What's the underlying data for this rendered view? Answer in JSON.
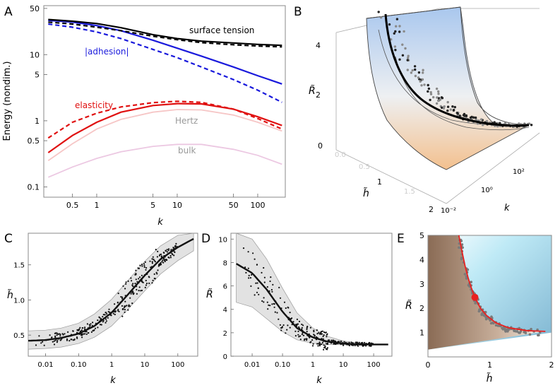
{
  "colors": {
    "surface_tension": "#000000",
    "adhesion": "#1a1adc",
    "elasticity": "#e01010",
    "hertz": "#f6c6c6",
    "bulk": "#ecc8e2",
    "band_fill": "#e2e2e2",
    "band_stroke": "#999999",
    "scatter": "#111111",
    "fit_line": "#111111",
    "curve_E": "#e82020"
  },
  "chart_data": [
    {
      "panel": "A",
      "type": "line",
      "xscale": "log",
      "yscale": "log",
      "xlim": [
        0.22,
        220
      ],
      "ylim": [
        0.07,
        55
      ],
      "xlabel": "k",
      "ylabel": "Energy (nondim.)",
      "xticks": [
        0.5,
        1,
        5,
        10,
        50,
        100
      ],
      "xtick_labels": [
        "0.5",
        "1",
        "5",
        "10",
        "50",
        "100"
      ],
      "yticks": [
        0.1,
        0.5,
        1,
        5,
        10,
        50
      ],
      "ytick_labels": [
        "0.1",
        "0.5",
        "1",
        "5",
        "10",
        "50"
      ],
      "x": [
        0.25,
        0.5,
        1,
        2,
        5,
        10,
        20,
        50,
        100,
        200
      ],
      "series": [
        {
          "name": "surface tension",
          "color_key": "surface_tension",
          "dash": false,
          "values": [
            34,
            32,
            29.5,
            25.5,
            20,
            17.5,
            16,
            15,
            14.3,
            13.8
          ]
        },
        {
          "name": "",
          "color_key": "surface_tension",
          "dash": true,
          "values": [
            31,
            29,
            26,
            23,
            19,
            16.8,
            15.2,
            14.1,
            13.5,
            13.1
          ]
        },
        {
          "name": "|adhesion|",
          "color_key": "adhesion",
          "dash": false,
          "values": [
            33,
            31,
            27.5,
            23,
            16.5,
            12.5,
            9.5,
            6.5,
            4.8,
            3.6
          ]
        },
        {
          "name": "",
          "color_key": "adhesion",
          "dash": true,
          "values": [
            29,
            26,
            22,
            17.5,
            12,
            9,
            6.5,
            4.2,
            2.9,
            1.9
          ]
        },
        {
          "name": "elasticity",
          "color_key": "elasticity",
          "dash": false,
          "values": [
            0.33,
            0.6,
            0.95,
            1.35,
            1.7,
            1.82,
            1.8,
            1.5,
            1.15,
            0.85
          ]
        },
        {
          "name": "",
          "color_key": "elasticity",
          "dash": true,
          "values": [
            0.55,
            0.95,
            1.3,
            1.62,
            1.88,
            1.97,
            1.9,
            1.5,
            1.08,
            0.75
          ]
        },
        {
          "name": "Hertz",
          "color_key": "hertz",
          "dash": false,
          "values": [
            0.25,
            0.45,
            0.75,
            1.05,
            1.35,
            1.48,
            1.46,
            1.22,
            0.95,
            0.7
          ]
        },
        {
          "name": "bulk",
          "color_key": "bulk",
          "dash": false,
          "values": [
            0.14,
            0.2,
            0.27,
            0.34,
            0.41,
            0.44,
            0.44,
            0.37,
            0.3,
            0.22
          ]
        }
      ]
    },
    {
      "panel": "B",
      "type": "scatter",
      "projection": "3d",
      "axes": {
        "x": "h̃",
        "y": "k",
        "z": "R̃"
      },
      "xticks": [
        "0.0",
        "0.5",
        "1",
        "1.5",
        "2"
      ],
      "yticks": [
        "10⁻²",
        "10⁰",
        "10²"
      ],
      "zticks": [
        "0",
        "2",
        "4"
      ]
    },
    {
      "panel": "C",
      "type": "scatter",
      "xscale": "log",
      "xlim": [
        0.003,
        400
      ],
      "ylim": [
        0.2,
        1.95
      ],
      "xlabel": "k",
      "ylabel": "h̃",
      "xticks": [
        0.01,
        0.1,
        1,
        10,
        100
      ],
      "xtick_labels": [
        "0.01",
        "0.10",
        "1",
        "10",
        "100"
      ],
      "yticks": [
        0.5,
        1.0,
        1.5
      ],
      "ytick_labels": [
        "0.5",
        "1.0",
        "1.5"
      ],
      "fit": {
        "x": [
          0.003,
          0.01,
          0.03,
          0.1,
          0.3,
          1,
          3,
          10,
          30,
          100,
          300
        ],
        "y": [
          0.42,
          0.43,
          0.46,
          0.52,
          0.63,
          0.82,
          1.07,
          1.35,
          1.58,
          1.75,
          1.87
        ]
      },
      "band": {
        "x": [
          0.003,
          0.01,
          0.03,
          0.1,
          0.3,
          1,
          3,
          10,
          30,
          100,
          300
        ],
        "lower": [
          0.3,
          0.31,
          0.33,
          0.38,
          0.47,
          0.63,
          0.86,
          1.13,
          1.37,
          1.56,
          1.7
        ],
        "upper": [
          0.56,
          0.57,
          0.6,
          0.67,
          0.8,
          1.01,
          1.27,
          1.55,
          1.77,
          1.92,
          1.98
        ]
      }
    },
    {
      "panel": "D",
      "type": "scatter",
      "xscale": "log",
      "xlim": [
        0.002,
        400
      ],
      "ylim": [
        0,
        10.5
      ],
      "xlabel": "k",
      "ylabel": "R̃",
      "xticks": [
        0.01,
        0.1,
        1,
        10,
        100
      ],
      "xtick_labels": [
        "0.01",
        "0.10",
        "1",
        "10",
        "100"
      ],
      "yticks": [
        0,
        2,
        4,
        6,
        8,
        10
      ],
      "ytick_labels": [
        "0",
        "2",
        "4",
        "6",
        "8",
        "10"
      ],
      "fit": {
        "x": [
          0.003,
          0.01,
          0.03,
          0.1,
          0.3,
          1,
          3,
          10,
          30,
          100,
          300
        ],
        "y": [
          7.9,
          7.1,
          5.7,
          3.8,
          2.4,
          1.6,
          1.25,
          1.08,
          1.02,
          1.0,
          1.0
        ]
      },
      "band": {
        "x": [
          0.003,
          0.01,
          0.03,
          0.1,
          0.3,
          1,
          3,
          10,
          30,
          100,
          300
        ],
        "lower": [
          4.6,
          4.2,
          3.2,
          2.1,
          1.4,
          1.1,
          1.0,
          0.97,
          0.96,
          0.96,
          0.96
        ],
        "upper": [
          10.5,
          10.0,
          8.3,
          5.8,
          3.7,
          2.4,
          1.7,
          1.3,
          1.12,
          1.05,
          1.03
        ]
      }
    },
    {
      "panel": "E",
      "type": "scatter",
      "xlim": [
        0,
        2
      ],
      "ylim": [
        0,
        5
      ],
      "xlabel": "h̃",
      "ylabel": "R̃",
      "xticks": [
        0,
        1,
        2
      ],
      "xtick_labels": [
        "0",
        "1",
        "2"
      ],
      "yticks": [
        1,
        2,
        3,
        4,
        5
      ],
      "ytick_labels": [
        "1",
        "2",
        "3",
        "4",
        "5"
      ],
      "curve": {
        "x": [
          0.5,
          0.55,
          0.6,
          0.65,
          0.7,
          0.76,
          0.85,
          0.95,
          1.1,
          1.3,
          1.6,
          1.9
        ],
        "y": [
          5.0,
          4.35,
          3.75,
          3.25,
          2.85,
          2.45,
          2.0,
          1.7,
          1.4,
          1.2,
          1.08,
          1.05
        ]
      },
      "highlight": {
        "x": 0.76,
        "y": 2.45
      }
    }
  ],
  "panels": {
    "A": {
      "letter": "A"
    },
    "B": {
      "letter": "B"
    },
    "C": {
      "letter": "C"
    },
    "D": {
      "letter": "D"
    },
    "E": {
      "letter": "E"
    }
  }
}
